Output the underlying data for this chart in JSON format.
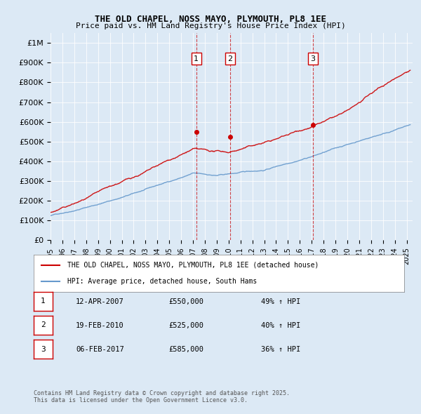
{
  "title": "THE OLD CHAPEL, NOSS MAYO, PLYMOUTH, PL8 1EE",
  "subtitle": "Price paid vs. HM Land Registry's House Price Index (HPI)",
  "background_color": "#dce9f5",
  "plot_bg_color": "#dce9f5",
  "ylabel_ticks": [
    "£0",
    "£100K",
    "£200K",
    "£300K",
    "£400K",
    "£500K",
    "£600K",
    "£700K",
    "£800K",
    "£900K",
    "£1M"
  ],
  "ytick_values": [
    0,
    100000,
    200000,
    300000,
    400000,
    500000,
    600000,
    700000,
    800000,
    900000,
    1000000
  ],
  "ylim": [
    0,
    1050000
  ],
  "xlim_start": 1995.0,
  "xlim_end": 2025.5,
  "sale_dates": [
    2007.278,
    2010.133,
    2017.093
  ],
  "sale_prices": [
    550000,
    525000,
    585000
  ],
  "sale_labels": [
    "1",
    "2",
    "3"
  ],
  "legend_line1": "THE OLD CHAPEL, NOSS MAYO, PLYMOUTH, PL8 1EE (detached house)",
  "legend_line2": "HPI: Average price, detached house, South Hams",
  "transaction_rows": [
    {
      "label": "1",
      "date": "12-APR-2007",
      "price": "£550,000",
      "hpi": "49% ↑ HPI"
    },
    {
      "label": "2",
      "date": "19-FEB-2010",
      "price": "£525,000",
      "hpi": "40% ↑ HPI"
    },
    {
      "label": "3",
      "date": "06-FEB-2017",
      "price": "£585,000",
      "hpi": "36% ↑ HPI"
    }
  ],
  "footnote": "Contains HM Land Registry data © Crown copyright and database right 2025.\nThis data is licensed under the Open Government Licence v3.0.",
  "red_color": "#cc0000",
  "blue_color": "#6699cc"
}
